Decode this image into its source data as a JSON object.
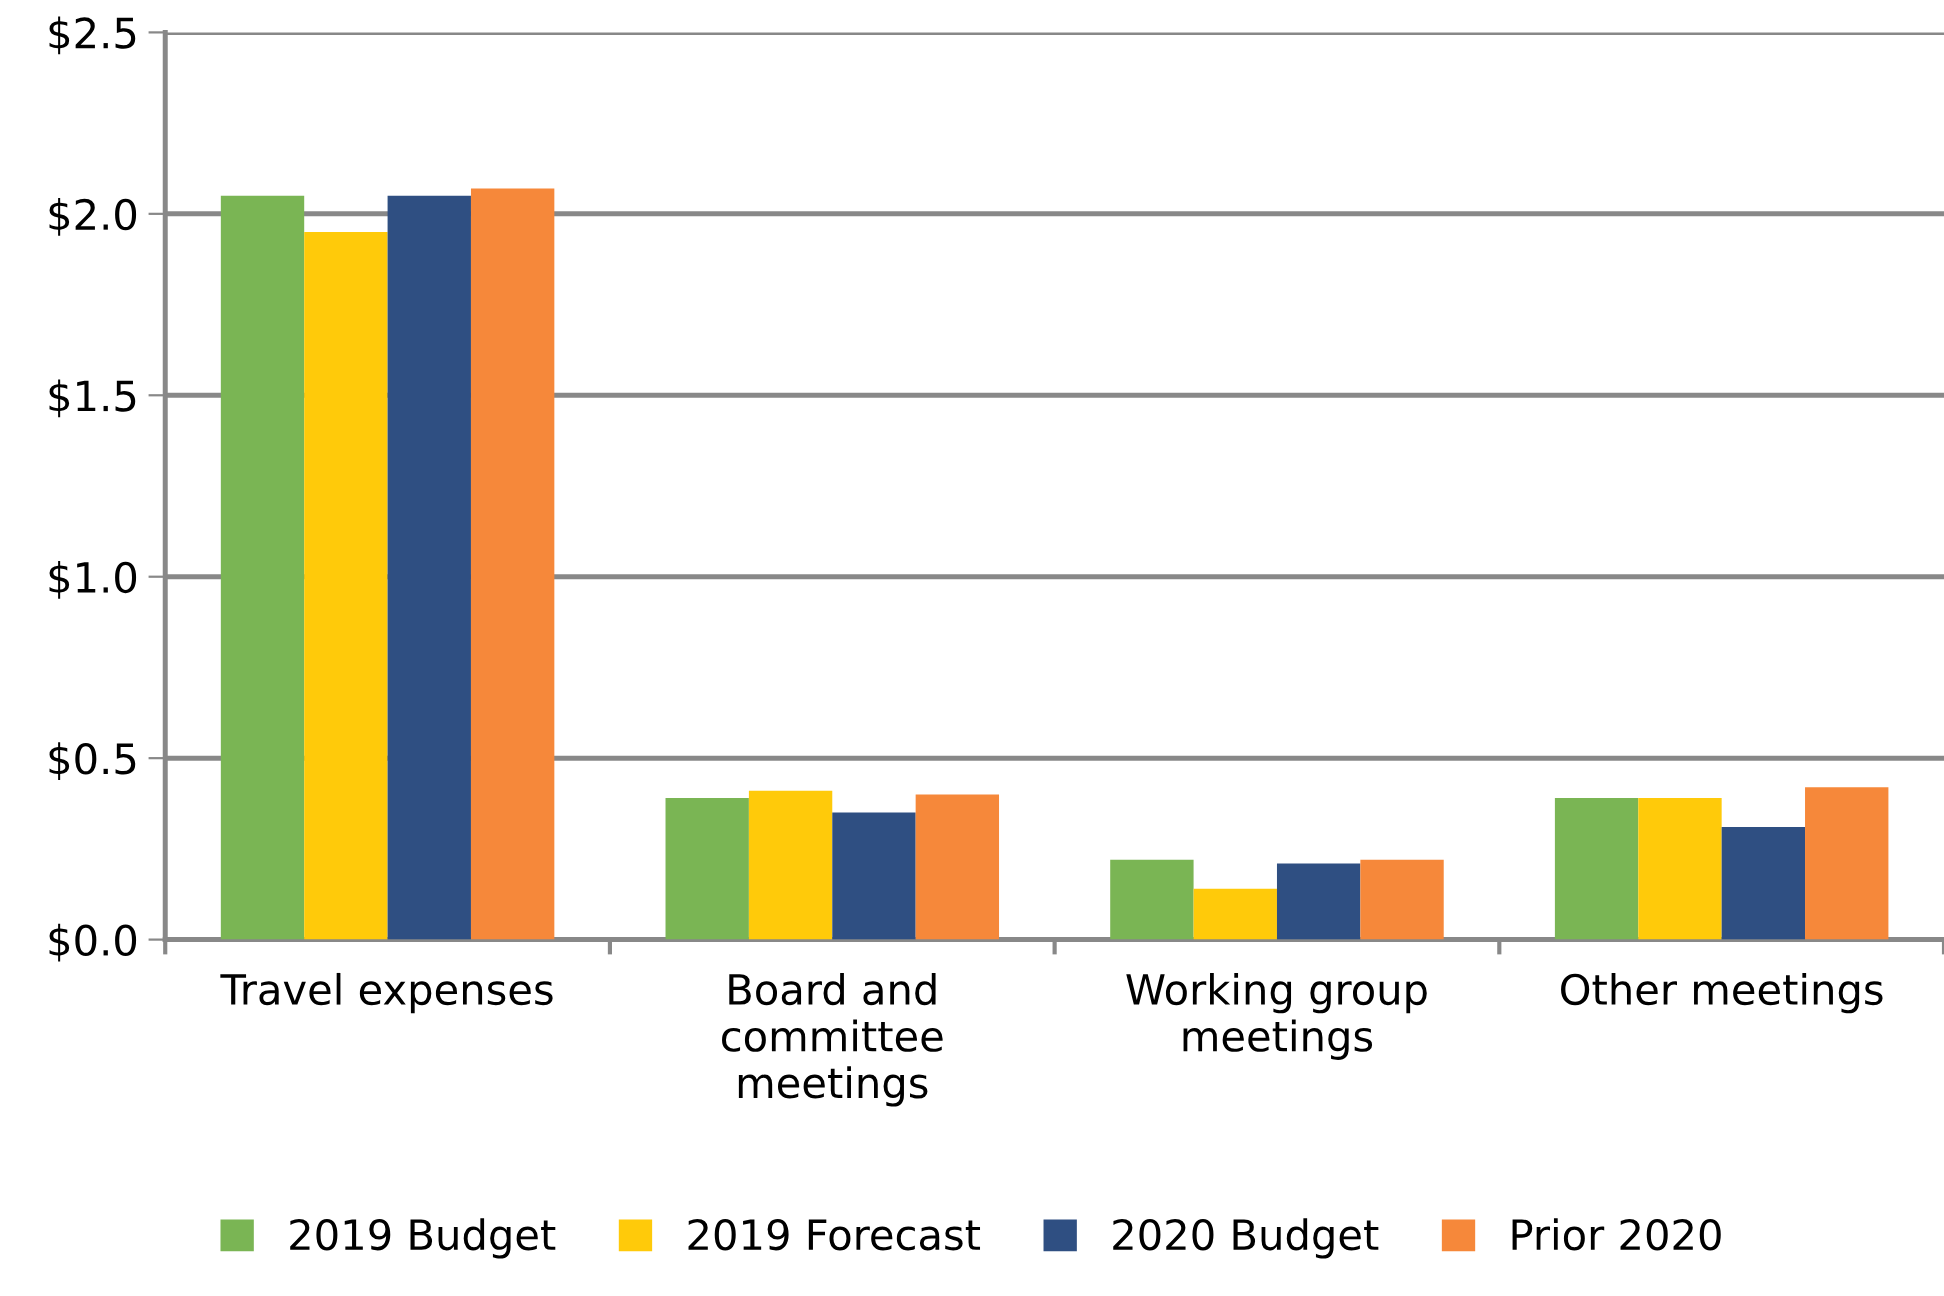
{
  "chart_data": {
    "type": "bar",
    "categories": [
      "Travel expenses",
      "Board and\ncommittee\nmeetings",
      "Working group\nmeetings",
      "Other meetings"
    ],
    "series": [
      {
        "name": "2019 Budget",
        "color": "#7ab554",
        "values": [
          2.05,
          0.39,
          0.22,
          0.39
        ]
      },
      {
        "name": "2019 Forecast",
        "color": "#ffca0a",
        "values": [
          1.95,
          0.41,
          0.14,
          0.39
        ]
      },
      {
        "name": "2020 Budget",
        "color": "#2f4f82",
        "values": [
          2.05,
          0.35,
          0.21,
          0.31
        ]
      },
      {
        "name": "Prior 2020",
        "color": "#f6883a",
        "values": [
          2.07,
          0.4,
          0.22,
          0.42
        ]
      }
    ],
    "ylim": [
      0,
      2.5
    ],
    "yticks": [
      {
        "value": 0,
        "label": "$0.0"
      },
      {
        "value": 0.5,
        "label": "$0.5"
      },
      {
        "value": 1.0,
        "label": "$1.0"
      },
      {
        "value": 1.5,
        "label": "$1.5"
      },
      {
        "value": 2.0,
        "label": "$2.0"
      },
      {
        "value": 2.5,
        "label": "$2.5"
      }
    ],
    "grid": "y",
    "legend": "bottom"
  }
}
